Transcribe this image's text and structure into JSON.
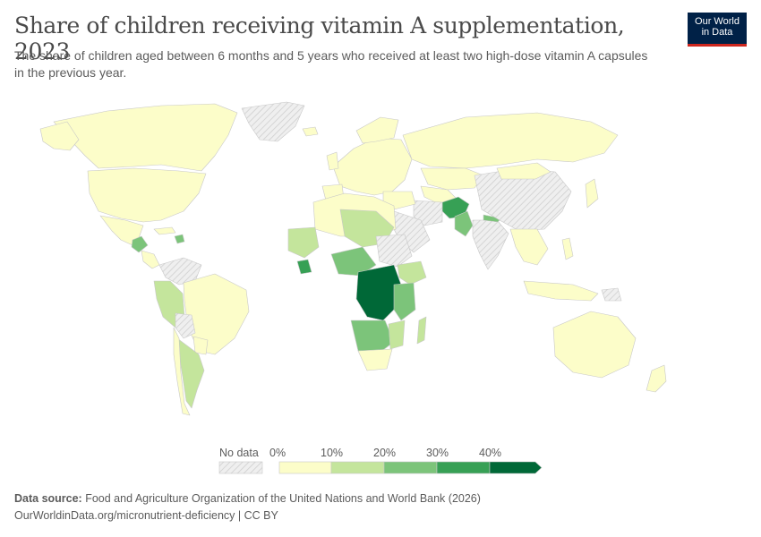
{
  "header": {
    "title": "Share of children receiving vitamin A supplementation, 2023",
    "subtitle": "The share of children aged between 6 months and 5 years who received at least two high-dose vitamin A capsules in the previous year."
  },
  "logo": {
    "line1": "Our World",
    "line2": "in Data",
    "bg_color": "#002147",
    "accent_color": "#ce261e"
  },
  "legend": {
    "no_data_label": "No data",
    "ticks": [
      "0%",
      "10%",
      "20%",
      "30%",
      "40%"
    ],
    "colors": [
      "#fcfdc9",
      "#c4e59c",
      "#7cc47a",
      "#37a055",
      "#006837"
    ],
    "no_data_color": "#e6e6e6"
  },
  "footer": {
    "source_label": "Data source:",
    "source_text": "Food and Agriculture Organization of the United Nations and World Bank (2026)",
    "url_text": "OurWorldinData.org/micronutrient-deficiency | CC BY"
  }
}
